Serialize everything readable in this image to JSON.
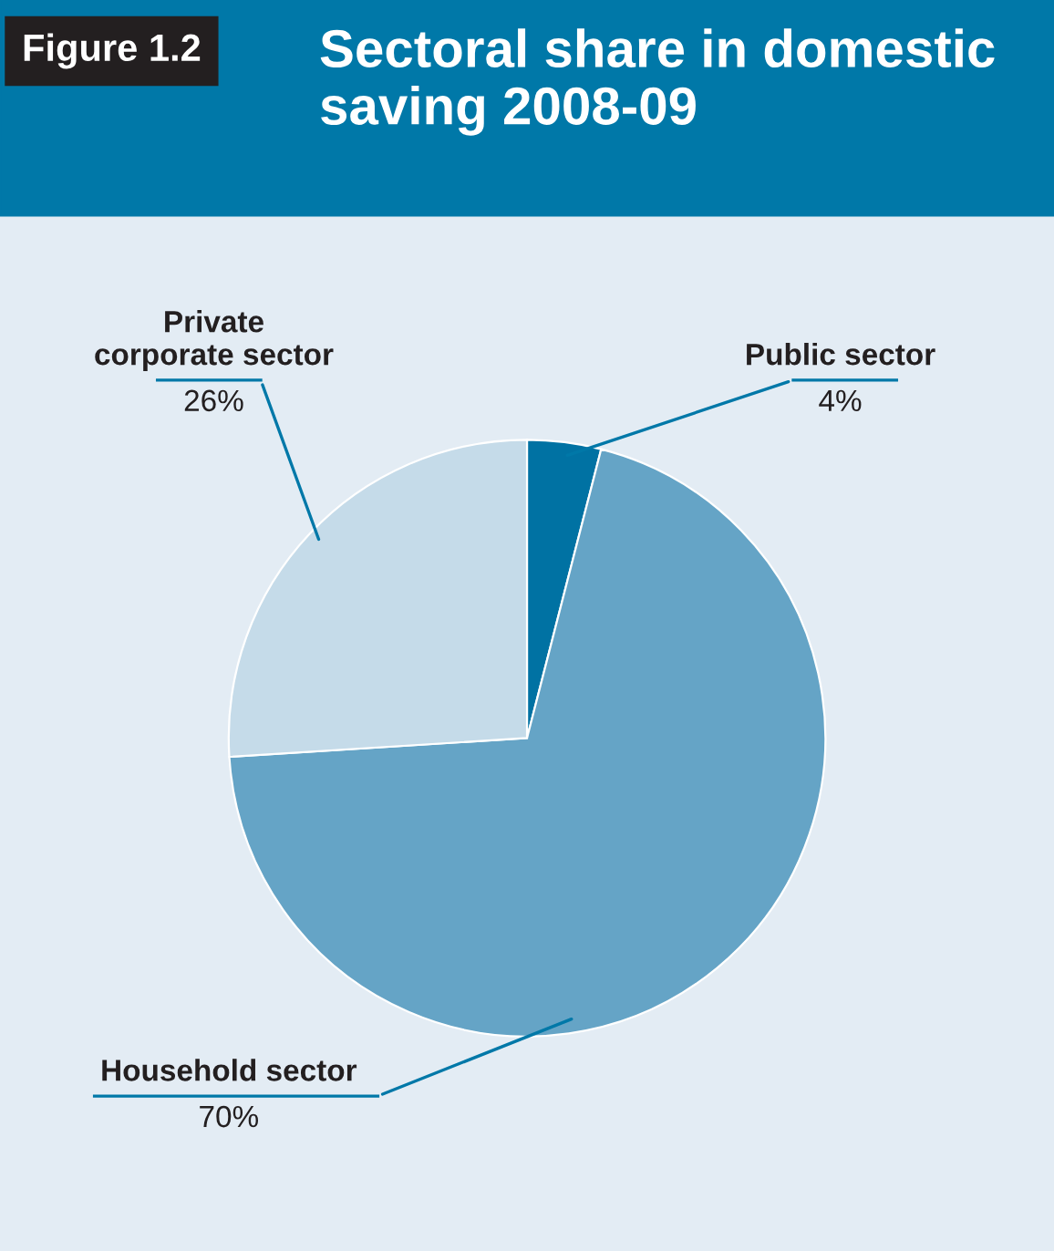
{
  "chart_data": {
    "type": "pie",
    "title": "Sectoral share in domestic saving 2008-09",
    "annotations": [
      "Figure 1.2"
    ],
    "categories": [
      "Public sector",
      "Household sector",
      "Private\ncorporate sector"
    ],
    "values": [
      4,
      70,
      26
    ],
    "value_labels": [
      "4%",
      "70%",
      "26%"
    ],
    "colors": [
      "#0072a3",
      "#65a4c6",
      "#c5dbe9"
    ],
    "legend": false
  }
}
